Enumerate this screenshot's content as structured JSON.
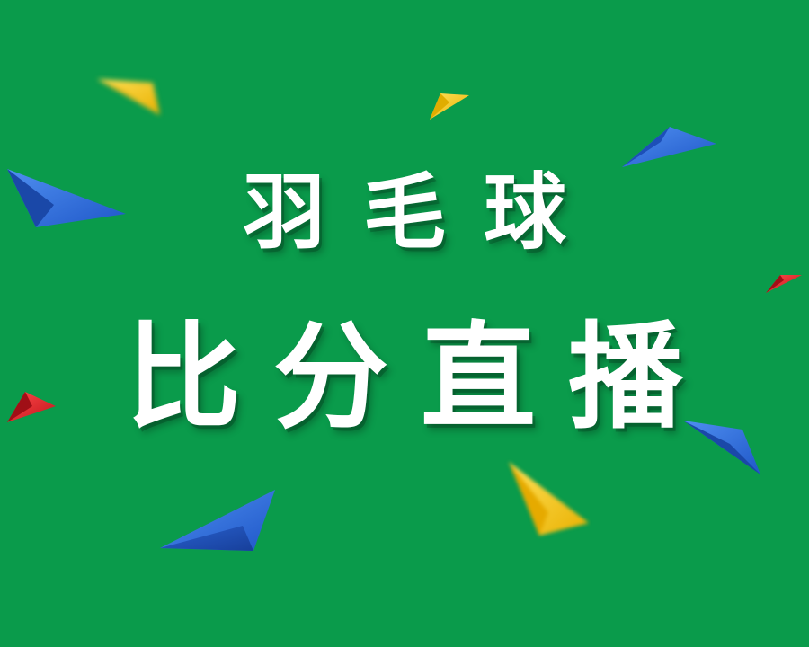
{
  "poster": {
    "title_line_1": "羽毛球",
    "title_line_2": "比分直播"
  },
  "colors": {
    "background": "#0a9b4b",
    "text": "#ffffff",
    "triangle_blue": "#2f6fe0",
    "triangle_red": "#e0212b",
    "triangle_yellow": "#f5c518"
  }
}
